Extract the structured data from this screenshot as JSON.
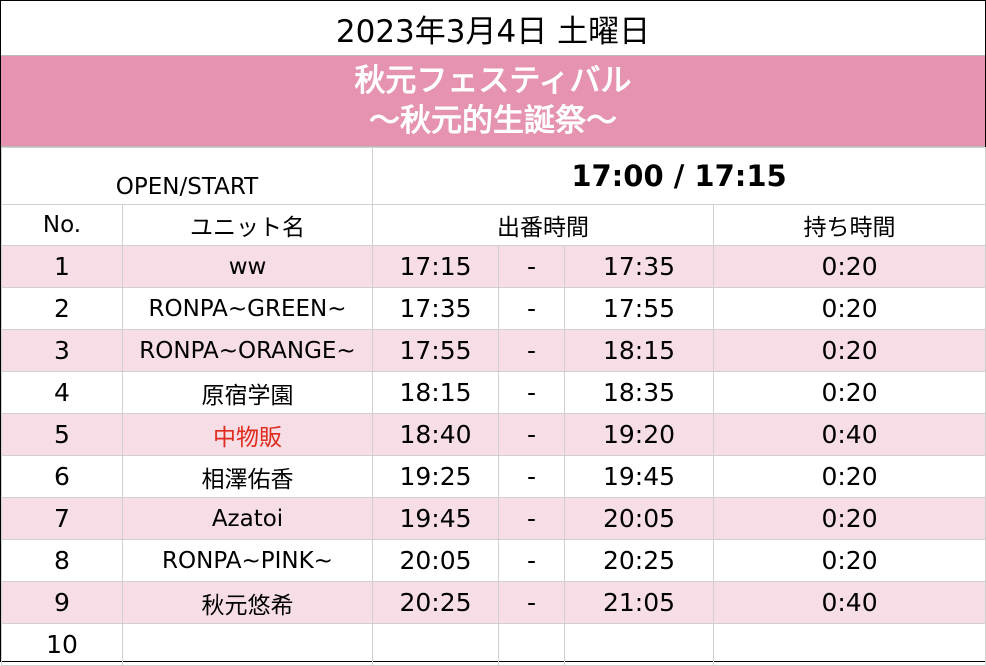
{
  "header": {
    "date": "2023年3月4日 土曜日",
    "title_line1": "秋元フェスティバル",
    "title_line2": "〜秋元的生誕祭〜"
  },
  "open_start": {
    "label": "OPEN/START",
    "value": "17:00 / 17:15"
  },
  "columns": {
    "no": "No.",
    "unit": "ユニット名",
    "slot": "出番時間",
    "duration": "持ち時間"
  },
  "rows": [
    {
      "no": "1",
      "unit": "ww",
      "start": "17:15",
      "sep": "-",
      "end": "17:35",
      "duration": "0:20"
    },
    {
      "no": "2",
      "unit": "RONPA~GREEN~",
      "start": "17:35",
      "sep": "-",
      "end": "17:55",
      "duration": "0:20"
    },
    {
      "no": "3",
      "unit": "RONPA~ORANGE~",
      "start": "17:55",
      "sep": "-",
      "end": "18:15",
      "duration": "0:20"
    },
    {
      "no": "4",
      "unit": "原宿学園",
      "start": "18:15",
      "sep": "-",
      "end": "18:35",
      "duration": "0:20"
    },
    {
      "no": "5",
      "unit": "中物販",
      "start": "18:40",
      "sep": "-",
      "end": "19:20",
      "duration": "0:40"
    },
    {
      "no": "6",
      "unit": "相澤佑香",
      "start": "19:25",
      "sep": "-",
      "end": "19:45",
      "duration": "0:20"
    },
    {
      "no": "7",
      "unit": "Azatoi",
      "start": "19:45",
      "sep": "-",
      "end": "20:05",
      "duration": "0:20"
    },
    {
      "no": "8",
      "unit": "RONPA~PINK~",
      "start": "20:05",
      "sep": "-",
      "end": "20:25",
      "duration": "0:20"
    },
    {
      "no": "9",
      "unit": "秋元悠希",
      "start": "20:25",
      "sep": "-",
      "end": "21:05",
      "duration": "0:40"
    },
    {
      "no": "10",
      "unit": "",
      "start": "",
      "sep": "",
      "end": "",
      "duration": ""
    }
  ],
  "colors": {
    "title_band": "#e593b0",
    "row_highlight": "#f6dde6",
    "merch_text": "#e02a1c"
  }
}
